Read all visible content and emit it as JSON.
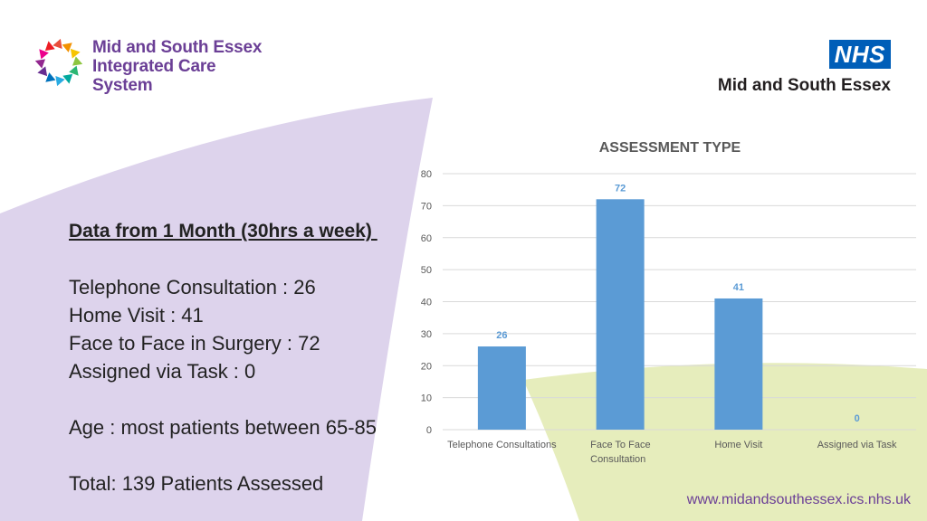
{
  "ics_logo": {
    "line1": "Mid and South Essex",
    "line2": "Integrated Care",
    "line3": "System"
  },
  "nhs_logo": {
    "mark": "NHS",
    "org": "Mid and South Essex",
    "mark_color": "#005eb8"
  },
  "summary": {
    "heading": "Data from 1 Month (30hrs a week) ",
    "lines": [
      "Telephone Consultation : 26",
      "Home Visit : 41",
      "Face to Face in Surgery : 72",
      "Assigned via Task : 0"
    ],
    "age": "Age : most patients between 65-85",
    "total": "Total: 139 Patients Assessed"
  },
  "footer": {
    "url": "www.midandsouthessex.ics.nhs.uk"
  },
  "colors": {
    "bar": "#5b9bd5",
    "label": "#5b9bd5",
    "accent_purple": "#6b3f96",
    "bg_lilac": "#ddd3ec",
    "bg_green": "#e6edbc"
  },
  "chart_data": {
    "type": "bar",
    "title": "ASSESSMENT TYPE",
    "categories": [
      [
        "Telephone Consultations"
      ],
      [
        "Face To Face",
        "Consultation"
      ],
      [
        "Home Visit"
      ],
      [
        "Assigned via Task"
      ]
    ],
    "values": [
      26,
      72,
      41,
      0
    ],
    "ylim": [
      0,
      80
    ],
    "yticks": [
      0,
      10,
      20,
      30,
      40,
      50,
      60,
      70,
      80
    ],
    "grid": true,
    "data_labels": true
  }
}
